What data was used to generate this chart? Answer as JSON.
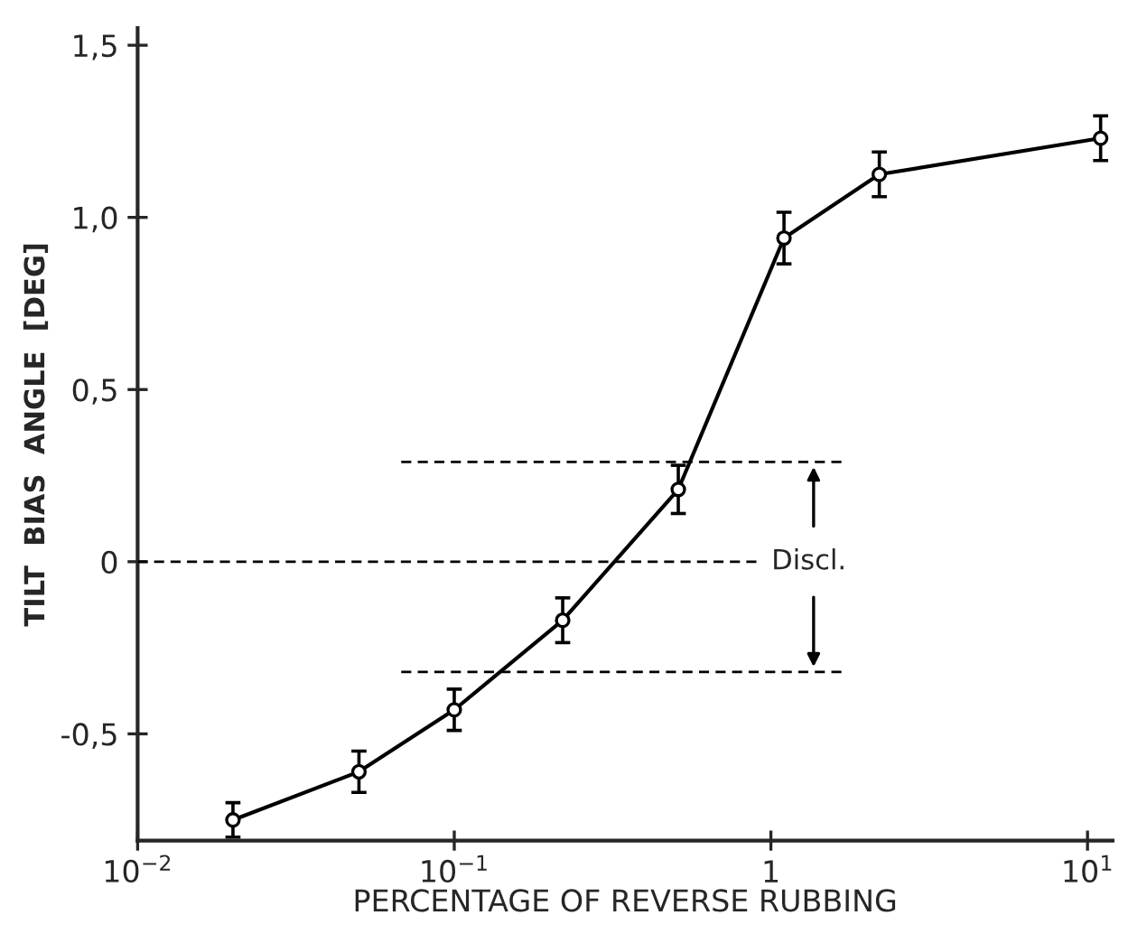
{
  "chart_data": {
    "type": "line",
    "xlabel": "PERCENTAGE OF REVERSE RUBBING",
    "ylabel": "TILT  BIAS  ANGLE  [DEG]",
    "log": "x",
    "xlim": [
      0.01,
      12
    ],
    "xticks": [
      {
        "value": 0.01,
        "label": "10$^{−2}$"
      },
      {
        "value": 0.1,
        "label": "10$^{−1}$"
      },
      {
        "value": 1,
        "label": "1"
      },
      {
        "value": 10,
        "label": "10$^{1}$"
      }
    ],
    "ylim": [
      -0.81,
      1.55
    ],
    "yticks": [
      {
        "value": -0.5,
        "label": "-0,5"
      },
      {
        "value": 0,
        "label": "0"
      },
      {
        "value": 0.5,
        "label": "0,5"
      },
      {
        "value": 1.0,
        "label": "1,0"
      },
      {
        "value": 1.5,
        "label": "1,5"
      }
    ],
    "grid": false,
    "legend": false,
    "marker": "circle",
    "line_style": "solid",
    "series": [
      {
        "color": "#000000",
        "x": [
          0.02,
          0.05,
          0.1,
          0.22,
          0.51,
          1.1,
          2.2,
          11
        ],
        "values": [
          -0.75,
          -0.61,
          -0.43,
          -0.17,
          0.21,
          0.94,
          1.125,
          1.23
        ],
        "errors": [
          0.05,
          0.06,
          0.06,
          0.065,
          0.07,
          0.075,
          0.065,
          0.065
        ]
      },
      {
        "type": "line",
        "color": "#000000",
        "line_style": "dashed",
        "marker": "none",
        "x": [
          0.068,
          1.67
        ],
        "values": [
          0.29,
          0.29
        ]
      },
      {
        "type": "line",
        "color": "#000000",
        "line_style": "dashed",
        "marker": "none",
        "x": [
          0.01,
          0.9
        ],
        "values": [
          0,
          0
        ]
      },
      {
        "type": "line",
        "color": "#000000",
        "line_style": "dashed",
        "marker": "none",
        "x": [
          0.068,
          1.67
        ],
        "values": [
          -0.32,
          -0.32
        ]
      }
    ],
    "annotations": [
      "Discl."
    ]
  }
}
